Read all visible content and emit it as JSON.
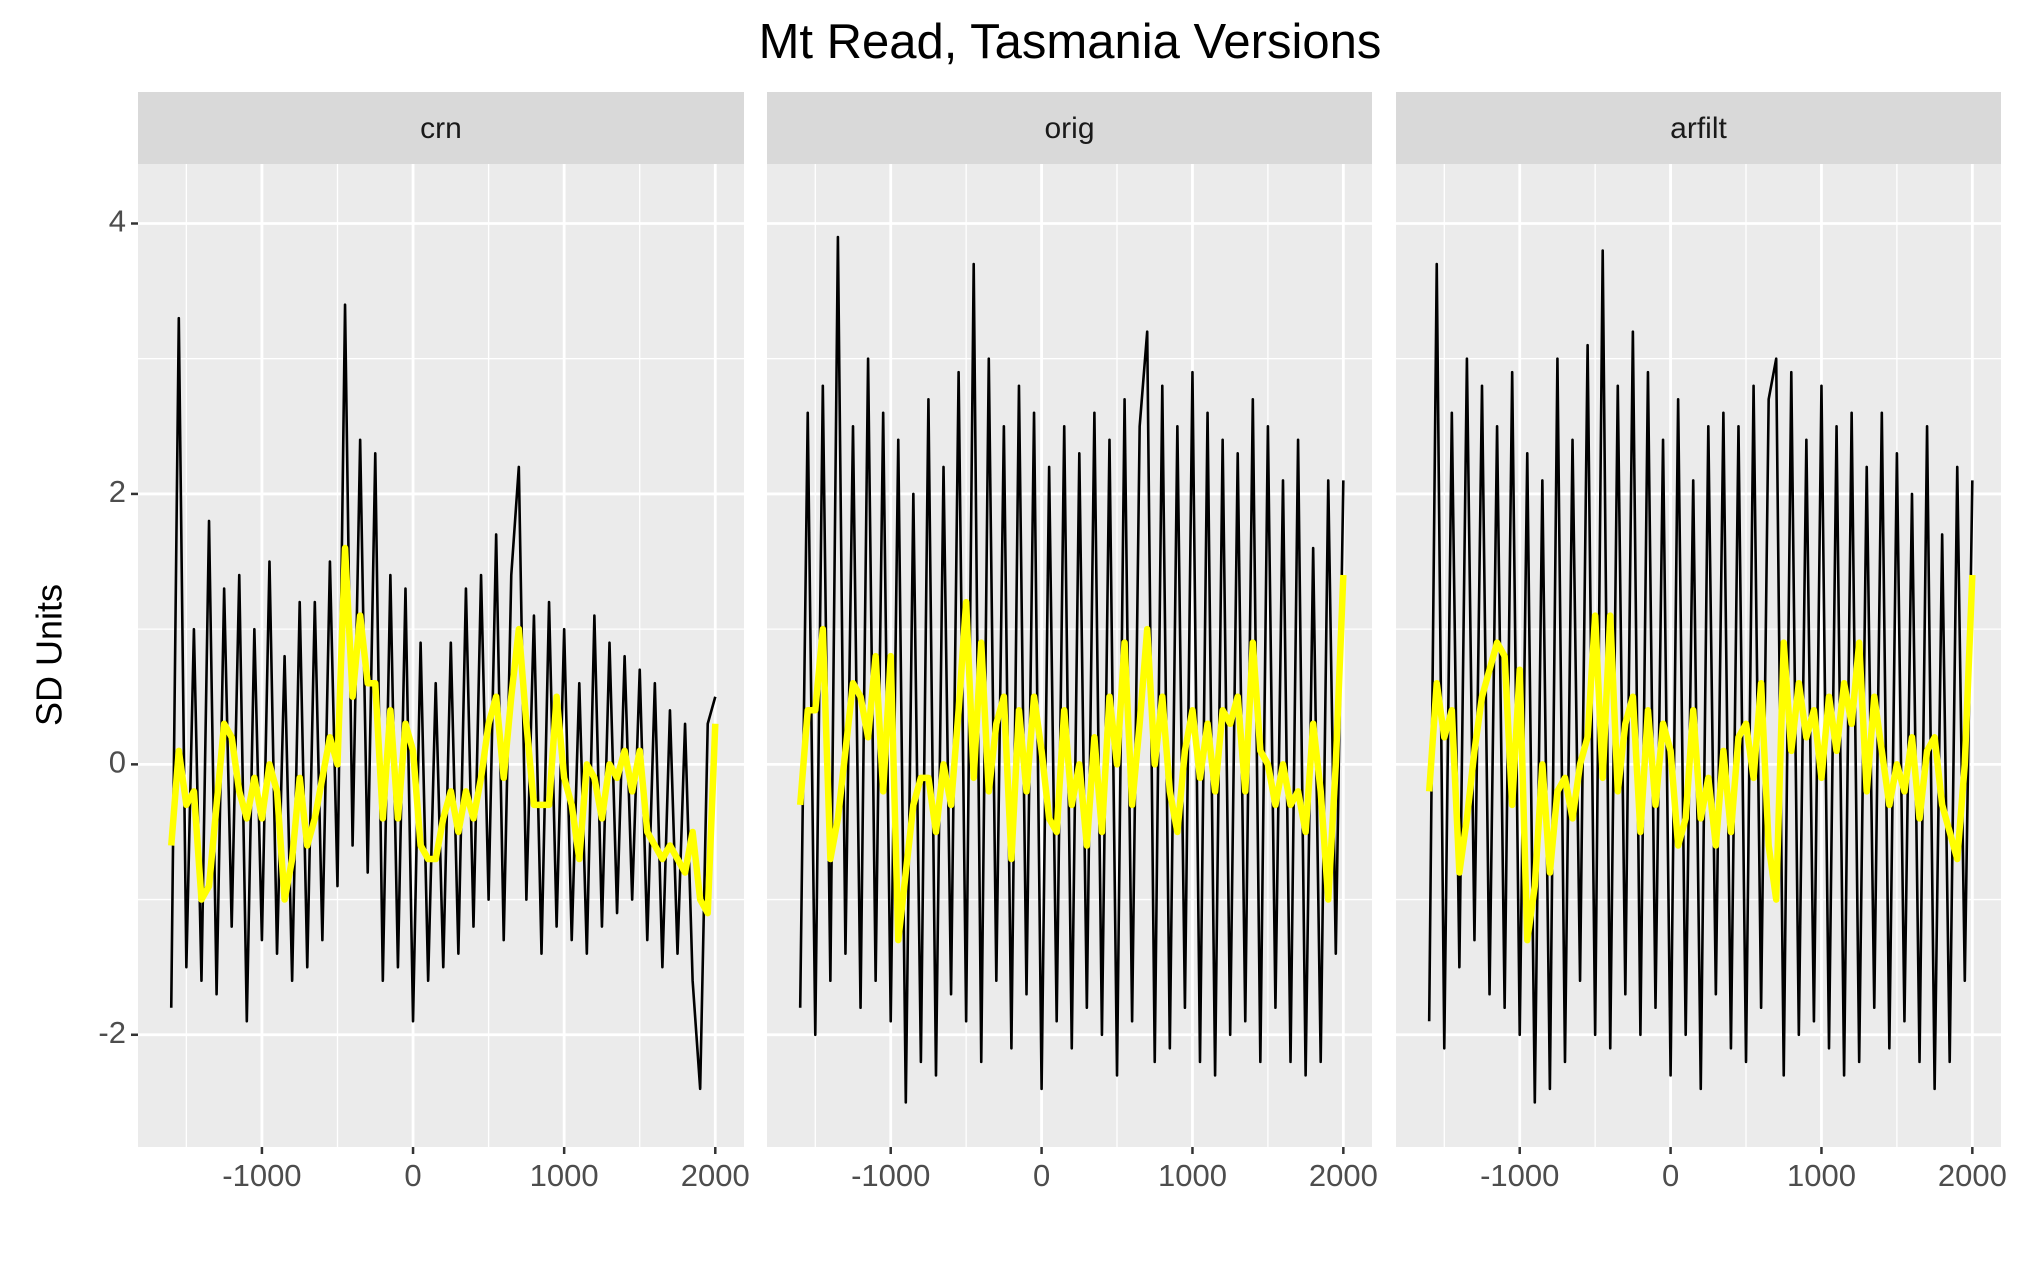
{
  "chart_data": {
    "type": "line",
    "title": "Mt Read, Tasmania Versions",
    "y_label": "SD Units",
    "grid": true,
    "xlim": [
      -1820,
      2190
    ],
    "xticks": [
      -1000,
      0,
      1000,
      2000
    ],
    "ylim": [
      -2.83,
      4.44
    ],
    "yticks": [
      -2,
      0,
      2,
      4
    ],
    "x": [
      -1600,
      -1550,
      -1500,
      -1450,
      -1400,
      -1350,
      -1300,
      -1250,
      -1200,
      -1150,
      -1100,
      -1050,
      -1000,
      -950,
      -900,
      -850,
      -800,
      -750,
      -700,
      -650,
      -600,
      -550,
      -500,
      -450,
      -400,
      -350,
      -300,
      -250,
      -200,
      -150,
      -100,
      -50,
      0,
      50,
      100,
      150,
      200,
      250,
      300,
      350,
      400,
      450,
      500,
      550,
      600,
      650,
      700,
      750,
      800,
      850,
      900,
      950,
      1000,
      1050,
      1100,
      1150,
      1200,
      1250,
      1300,
      1350,
      1400,
      1450,
      1500,
      1550,
      1600,
      1650,
      1700,
      1750,
      1800,
      1850,
      1900,
      1950,
      2000
    ],
    "panels": [
      {
        "title": "crn",
        "series": [
          {
            "color": "#000000",
            "values": [
              -1.8,
              3.3,
              -1.5,
              1.0,
              -1.6,
              1.8,
              -1.7,
              1.3,
              -1.2,
              1.4,
              -1.9,
              1.0,
              -1.3,
              1.5,
              -1.4,
              0.8,
              -1.6,
              1.2,
              -1.5,
              1.2,
              -1.3,
              1.5,
              -0.9,
              3.4,
              -0.6,
              2.4,
              -0.8,
              2.3,
              -1.6,
              1.4,
              -1.5,
              1.3,
              -1.9,
              0.9,
              -1.6,
              0.6,
              -1.5,
              0.9,
              -1.4,
              1.3,
              -1.2,
              1.4,
              -1.0,
              1.7,
              -1.3,
              1.4,
              2.2,
              -1.0,
              1.1,
              -1.4,
              1.2,
              -1.2,
              1.0,
              -1.3,
              0.6,
              -1.4,
              1.1,
              -1.2,
              0.9,
              -1.1,
              0.8,
              -1.0,
              0.7,
              -1.3,
              0.6,
              -1.5,
              0.4,
              -1.4,
              0.3,
              -1.6,
              -2.4,
              0.3,
              0.5
            ]
          },
          {
            "color": "#ffff00",
            "values": [
              -0.6,
              0.1,
              -0.3,
              -0.2,
              -1.0,
              -0.9,
              -0.3,
              0.3,
              0.2,
              -0.2,
              -0.4,
              -0.1,
              -0.4,
              0.0,
              -0.2,
              -1.0,
              -0.7,
              -0.1,
              -0.6,
              -0.4,
              -0.1,
              0.2,
              0.0,
              1.6,
              0.5,
              1.1,
              0.6,
              0.6,
              -0.4,
              0.4,
              -0.4,
              0.3,
              0.1,
              -0.6,
              -0.7,
              -0.7,
              -0.4,
              -0.2,
              -0.5,
              -0.2,
              -0.4,
              -0.1,
              0.3,
              0.5,
              -0.1,
              0.5,
              1.0,
              0.3,
              -0.3,
              -0.3,
              -0.3,
              0.5,
              -0.1,
              -0.3,
              -0.7,
              0.0,
              -0.1,
              -0.4,
              0.0,
              -0.1,
              0.1,
              -0.2,
              0.1,
              -0.5,
              -0.6,
              -0.7,
              -0.6,
              -0.7,
              -0.8,
              -0.5,
              -1.0,
              -1.1,
              0.3
            ]
          }
        ]
      },
      {
        "title": "orig",
        "series": [
          {
            "color": "#000000",
            "values": [
              -1.8,
              2.6,
              -2.0,
              2.8,
              -1.6,
              3.9,
              -1.4,
              2.5,
              -1.8,
              3.0,
              -1.6,
              2.6,
              -1.9,
              2.4,
              -2.5,
              2.0,
              -2.2,
              2.7,
              -2.3,
              2.2,
              -1.7,
              2.9,
              -1.9,
              3.7,
              -2.2,
              3.0,
              -1.6,
              2.5,
              -2.1,
              2.8,
              -1.7,
              2.6,
              -2.4,
              2.2,
              -1.9,
              2.5,
              -2.1,
              2.3,
              -1.8,
              2.6,
              -2.0,
              2.4,
              -2.3,
              2.7,
              -1.9,
              2.5,
              3.2,
              -2.2,
              2.8,
              -2.1,
              2.5,
              -1.8,
              2.9,
              -2.2,
              2.6,
              -2.3,
              2.4,
              -2.0,
              2.3,
              -1.9,
              2.7,
              -2.2,
              2.5,
              -1.8,
              2.1,
              -2.2,
              2.4,
              -2.3,
              1.6,
              -2.2,
              2.1,
              -1.4,
              2.1
            ]
          },
          {
            "color": "#ffff00",
            "values": [
              -0.3,
              0.4,
              0.4,
              1.0,
              -0.7,
              -0.4,
              0.1,
              0.6,
              0.5,
              0.2,
              0.8,
              -0.2,
              0.8,
              -1.3,
              -0.8,
              -0.3,
              -0.1,
              -0.1,
              -0.5,
              0.0,
              -0.3,
              0.4,
              1.2,
              -0.1,
              0.9,
              -0.2,
              0.3,
              0.5,
              -0.7,
              0.4,
              -0.2,
              0.5,
              0.1,
              -0.4,
              -0.5,
              0.4,
              -0.3,
              0.0,
              -0.6,
              0.2,
              -0.5,
              0.5,
              0.0,
              0.9,
              -0.3,
              0.3,
              1.0,
              0.0,
              0.5,
              -0.2,
              -0.5,
              0.1,
              0.4,
              -0.1,
              0.3,
              -0.2,
              0.4,
              0.3,
              0.5,
              -0.2,
              0.9,
              0.1,
              0.0,
              -0.3,
              0.0,
              -0.3,
              -0.2,
              -0.5,
              0.3,
              -0.2,
              -1.0,
              0.0,
              1.4
            ]
          }
        ]
      },
      {
        "title": "arfilt",
        "series": [
          {
            "color": "#000000",
            "values": [
              -1.9,
              3.7,
              -2.1,
              2.6,
              -1.5,
              3.0,
              -1.3,
              2.8,
              -1.7,
              2.5,
              -1.8,
              2.9,
              -2.0,
              2.3,
              -2.5,
              2.1,
              -2.4,
              3.0,
              -2.2,
              2.4,
              -1.6,
              3.1,
              -2.0,
              3.8,
              -2.1,
              2.8,
              -1.7,
              3.2,
              -2.0,
              2.9,
              -1.8,
              2.4,
              -2.3,
              2.7,
              -2.0,
              2.1,
              -2.4,
              2.5,
              -1.7,
              2.6,
              -2.1,
              2.5,
              -2.2,
              2.8,
              -1.8,
              2.7,
              3.0,
              -2.3,
              2.9,
              -2.0,
              2.4,
              -1.9,
              2.8,
              -2.1,
              2.5,
              -2.3,
              2.6,
              -2.2,
              2.2,
              -1.8,
              2.6,
              -2.1,
              2.3,
              -1.9,
              2.0,
              -2.2,
              2.5,
              -2.4,
              1.7,
              -2.2,
              2.2,
              -1.6,
              2.1
            ]
          },
          {
            "color": "#ffff00",
            "values": [
              -0.2,
              0.6,
              0.2,
              0.4,
              -0.8,
              -0.4,
              0.1,
              0.5,
              0.7,
              0.9,
              0.8,
              -0.3,
              0.7,
              -1.3,
              -0.9,
              0.0,
              -0.8,
              -0.2,
              -0.1,
              -0.4,
              0.0,
              0.2,
              1.1,
              -0.1,
              1.1,
              -0.2,
              0.3,
              0.5,
              -0.5,
              0.4,
              -0.3,
              0.3,
              0.1,
              -0.6,
              -0.4,
              0.4,
              -0.4,
              -0.1,
              -0.6,
              0.1,
              -0.5,
              0.2,
              0.3,
              -0.1,
              0.6,
              -0.6,
              -1.0,
              0.9,
              0.1,
              0.6,
              0.2,
              0.4,
              -0.1,
              0.5,
              0.1,
              0.6,
              0.3,
              0.9,
              -0.2,
              0.5,
              0.1,
              -0.3,
              0.0,
              -0.2,
              0.2,
              -0.4,
              0.1,
              0.2,
              -0.3,
              -0.5,
              -0.7,
              0.0,
              1.4
            ]
          }
        ]
      }
    ]
  }
}
